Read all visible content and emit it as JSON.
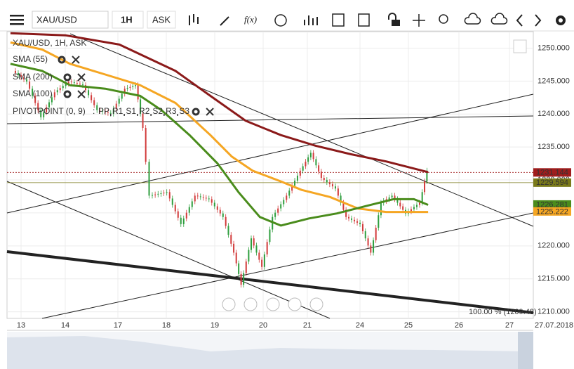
{
  "toolbar": {
    "symbol": "XAU/USD",
    "timeframe": "1H",
    "side": "ASK",
    "function": "f(x)"
  },
  "legend": {
    "instrument": "XAU/USD, 1H, ASK",
    "indicators": [
      {
        "name": "SMA (55)",
        "color": "#4a8c1c"
      },
      {
        "name": "SMA (200)",
        "color": "#8b1a1a"
      },
      {
        "name": "SMA (100)",
        "color": "#f5a623"
      }
    ],
    "pivot": {
      "name": "PIVOTPOINT (0, 9)",
      "separator": ":",
      "items": [
        {
          "label": "PP",
          "color": "#c0168c"
        },
        {
          "label": "R1",
          "color": "#7a3fb5"
        },
        {
          "label": "S1",
          "color": "#3a6fc4"
        },
        {
          "label": "R2",
          "color": "#7a3fb5"
        },
        {
          "label": "S2",
          "color": "#3a6fc4"
        },
        {
          "label": "R3",
          "color": "#7a3fb5"
        },
        {
          "label": "S3",
          "color": "#3a6fc4"
        }
      ]
    }
  },
  "chart_data": {
    "type": "candlestick",
    "categories": [
      "13",
      "14",
      "17",
      "18",
      "19",
      "20",
      "21",
      "24",
      "25",
      "26",
      "27"
    ],
    "date_label": "27.07.2018",
    "ylim": [
      1209,
      1252.5
    ],
    "yticks": [
      {
        "value": 1250,
        "label": "1250.000"
      },
      {
        "value": 1245,
        "label": "1245.000"
      },
      {
        "value": 1240,
        "label": "1240.000"
      },
      {
        "value": 1235,
        "label": "1235.000"
      },
      {
        "value": 1230,
        "label": "1230.000"
      },
      {
        "value": 1225,
        "label": "1225.000"
      },
      {
        "value": 1220,
        "label": "1220.000"
      },
      {
        "value": 1215,
        "label": "1215.000"
      },
      {
        "value": 1210,
        "label": "1210.000"
      }
    ],
    "price": {
      "x": [
        -0.16,
        0.16,
        0.48,
        0.79,
        1.09,
        1.36,
        1.63,
        1.89,
        2.17,
        2.39,
        2.54,
        2.68,
        3.04,
        3.33,
        3.62,
        3.91,
        4.2,
        4.42,
        4.57,
        4.78,
        5.0,
        5.24,
        5.56,
        5.87,
        6.09,
        6.29,
        6.56,
        6.76,
        7.03,
        7.25,
        7.46,
        7.69,
        7.97,
        8.25,
        8.39
      ],
      "values": [
        1246.54,
        1244.92,
        1239.51,
        1243.3,
        1244.92,
        1244.38,
        1240.59,
        1240.05,
        1243.84,
        1244.38,
        1237.89,
        1227.62,
        1228.16,
        1223.3,
        1227.62,
        1227.08,
        1224.38,
        1218.97,
        1214.11,
        1221.14,
        1216.81,
        1224.38,
        1227.62,
        1231.41,
        1234.11,
        1230.32,
        1228.7,
        1224.38,
        1223.3,
        1218.97,
        1226.54,
        1227.62,
        1224.92,
        1226.54,
        1231.41
      ],
      "up_color": "#2e9e3e",
      "down_color": "#d23b3b"
    },
    "series": [
      {
        "name": "SMA (200)",
        "color": "#8b1a1a",
        "x": [
          -0.24,
          1,
          2.03,
          3.19,
          3.91,
          4.64,
          5.4,
          6.16,
          6.83,
          7.54,
          8.39
        ],
        "values": [
          1252.27,
          1251.95,
          1250.54,
          1246.54,
          1242.76,
          1238.97,
          1236.81,
          1235.19,
          1233.89,
          1232.81,
          1231.19
        ]
      },
      {
        "name": "SMA (100)",
        "color": "#f5a623",
        "x": [
          -0.24,
          0.48,
          1.09,
          1.76,
          2.46,
          3.19,
          3.91,
          4.35,
          4.78,
          5.4,
          5.87,
          6.43,
          6.96,
          7.54,
          8.39
        ],
        "values": [
          1250.86,
          1249.78,
          1247.62,
          1246.0,
          1244.38,
          1241.68,
          1236.81,
          1233.57,
          1231.41,
          1229.78,
          1228.49,
          1227.41,
          1225.68,
          1225.14,
          1225.14
        ]
      },
      {
        "name": "SMA (55)",
        "color": "#4a8c1c",
        "x": [
          -0.24,
          0.48,
          1.09,
          1.76,
          2.46,
          2.9,
          3.48,
          4.06,
          4.49,
          4.93,
          5.4,
          6.03,
          6.56,
          7.1,
          7.69,
          8.11,
          8.39
        ],
        "values": [
          1247.62,
          1246.54,
          1244.38,
          1243.84,
          1242.76,
          1240.59,
          1236.81,
          1232.49,
          1228.16,
          1224.38,
          1223.08,
          1224.16,
          1224.92,
          1226.0,
          1227.08,
          1227.08,
          1226.22
        ]
      }
    ],
    "price_tags": [
      {
        "value": 1231.144,
        "label": "1231.144",
        "color": "#a01c1c"
      },
      {
        "value": 1229.594,
        "label": "1229.594",
        "color": "#7a7a1a"
      },
      {
        "value": 1226.281,
        "label": "1226.281",
        "color": "#4a8c1c"
      },
      {
        "value": 1225.222,
        "label": "1225.222",
        "color": "#f5a623"
      }
    ],
    "fib_label": "100.00 % (1209.48)"
  }
}
